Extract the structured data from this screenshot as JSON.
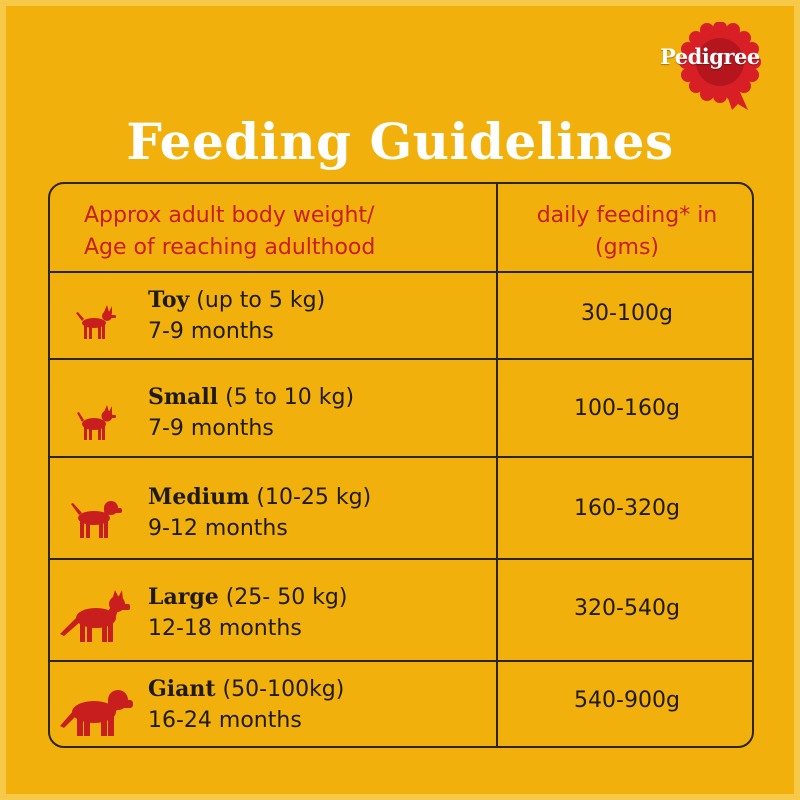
{
  "brand": {
    "name": "Pedigree",
    "color": "#d81f26"
  },
  "title": "Feeding Guidelines",
  "colors": {
    "background": "#f1b00b",
    "header_text": "#c81e1e",
    "dog": "#c81e1e",
    "title": "#ffffff"
  },
  "table": {
    "headers": {
      "left_line1": "Approx adult body weight/",
      "left_line2": "Age of reaching adulthood",
      "right_line1": "daily feeding* in",
      "right_line2": "(gms)"
    },
    "rows": [
      {
        "size": "Toy",
        "range": " (up to 5 kg)",
        "age": "7-9 months",
        "amount": "30-100g",
        "icon": "toy-dog-icon"
      },
      {
        "size": "Small",
        "range": " (5 to 10 kg)",
        "age": "7-9 months",
        "amount": "100-160g",
        "icon": "small-dog-icon"
      },
      {
        "size": "Medium",
        "range": " (10-25 kg)",
        "age": "9-12 months",
        "amount": "160-320g",
        "icon": "medium-dog-icon"
      },
      {
        "size": "Large",
        "range": " (25- 50 kg)",
        "age": "12-18 months",
        "amount": "320-540g",
        "icon": "large-dog-icon"
      },
      {
        "size": "Giant",
        "range": " (50-100kg)",
        "age": "16-24 months",
        "amount": "540-900g",
        "icon": "giant-dog-icon"
      }
    ]
  }
}
